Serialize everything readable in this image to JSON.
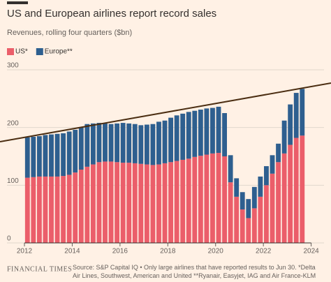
{
  "chart_data": {
    "type": "stacked-bar",
    "title": "US and European airlines report record sales",
    "subtitle": "Revenues, rolling four quarters ($bn)",
    "x": [
      2012.125,
      2012.375,
      2012.625,
      2012.875,
      2013.125,
      2013.375,
      2013.625,
      2013.875,
      2014.125,
      2014.375,
      2014.625,
      2014.875,
      2015.125,
      2015.375,
      2015.625,
      2015.875,
      2016.125,
      2016.375,
      2016.625,
      2016.875,
      2017.125,
      2017.375,
      2017.625,
      2017.875,
      2018.125,
      2018.375,
      2018.625,
      2018.875,
      2019.125,
      2019.375,
      2019.625,
      2019.875,
      2020.125,
      2020.375,
      2020.625,
      2020.875,
      2021.125,
      2021.375,
      2021.625,
      2021.875,
      2022.125,
      2022.375,
      2022.625,
      2022.875,
      2023.125,
      2023.375,
      2023.625
    ],
    "series": [
      {
        "name": "US*",
        "color": "#eb5e6a",
        "values": [
          113,
          114,
          115,
          115,
          115,
          115,
          116,
          118,
          122,
          127,
          132,
          136,
          140,
          141,
          141,
          140,
          139,
          139,
          138,
          137,
          136,
          135,
          136,
          138,
          140,
          142,
          144,
          146,
          149,
          151,
          153,
          155,
          156,
          150,
          105,
          80,
          58,
          43,
          60,
          80,
          100,
          120,
          140,
          155,
          170,
          182,
          186
        ]
      },
      {
        "name": "Europe**",
        "color": "#2e5f8f",
        "values": [
          70,
          70,
          70,
          72,
          73,
          74,
          74,
          75,
          74,
          73,
          74,
          71,
          68,
          66,
          65,
          67,
          69,
          68,
          68,
          67,
          69,
          71,
          74,
          74,
          77,
          79,
          80,
          81,
          80,
          80,
          80,
          79,
          80,
          75,
          47,
          32,
          30,
          33,
          37,
          35,
          33,
          32,
          32,
          57,
          70,
          78,
          81
        ]
      }
    ],
    "xlim": [
      2012,
      2024
    ],
    "xticks": [
      2012,
      2014,
      2016,
      2018,
      2020,
      2022,
      2024
    ],
    "ylim": [
      0,
      300
    ],
    "yticks": [
      0,
      100,
      200,
      300
    ],
    "grid": true,
    "source": "Source: S&P Capital IQ • Only large airlines that have reported results to Jun 30. *Delta Air Lines, Southwest, American and United **Ryanair, Easyjet, IAG and Air France-KLM",
    "brand": "FINANCIAL TIMES"
  }
}
